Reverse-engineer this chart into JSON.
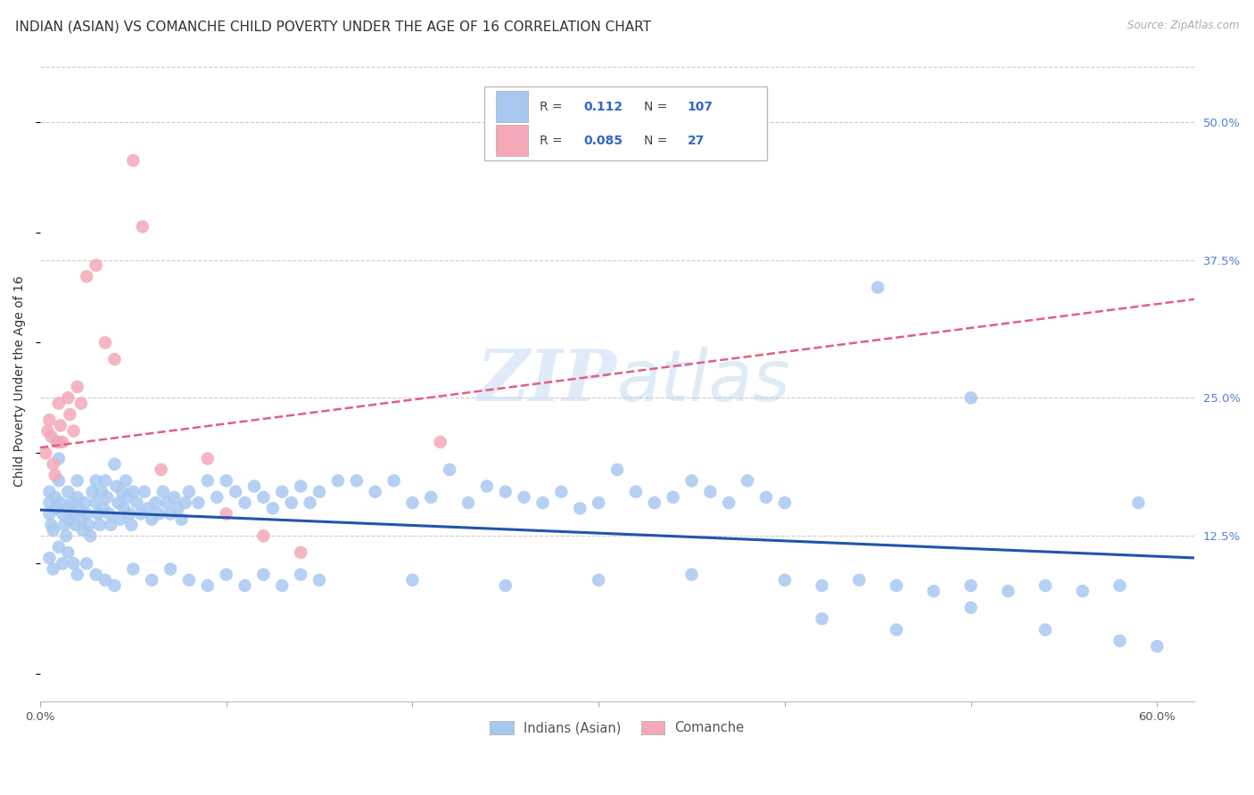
{
  "title": "INDIAN (ASIAN) VS COMANCHE CHILD POVERTY UNDER THE AGE OF 16 CORRELATION CHART",
  "source": "Source: ZipAtlas.com",
  "ylabel": "Child Poverty Under the Age of 16",
  "xlim": [
    0.0,
    0.62
  ],
  "ylim": [
    -0.025,
    0.555
  ],
  "xticks": [
    0.0,
    0.1,
    0.2,
    0.3,
    0.4,
    0.5,
    0.6
  ],
  "xticklabels": [
    "0.0%",
    "",
    "",
    "",
    "",
    "",
    "60.0%"
  ],
  "yticks_right": [
    0.125,
    0.25,
    0.375,
    0.5
  ],
  "ytick_labels_right": [
    "12.5%",
    "25.0%",
    "37.5%",
    "50.0%"
  ],
  "color_asian": "#a8c8f0",
  "color_comanche": "#f4a8b8",
  "line_color_asian": "#2255aa",
  "line_color_comanche": "#e06080",
  "background_color": "#ffffff",
  "watermark_zip": "ZIP",
  "watermark_atlas": "atlas",
  "title_fontsize": 11,
  "axis_label_fontsize": 10,
  "tick_fontsize": 9.5,
  "asian_x": [
    0.005,
    0.005,
    0.005,
    0.006,
    0.007,
    0.008,
    0.009,
    0.01,
    0.01,
    0.01,
    0.011,
    0.012,
    0.013,
    0.014,
    0.015,
    0.015,
    0.016,
    0.017,
    0.018,
    0.019,
    0.02,
    0.02,
    0.021,
    0.022,
    0.023,
    0.024,
    0.025,
    0.026,
    0.027,
    0.028,
    0.03,
    0.03,
    0.031,
    0.032,
    0.033,
    0.034,
    0.035,
    0.036,
    0.037,
    0.038,
    0.04,
    0.041,
    0.042,
    0.043,
    0.044,
    0.045,
    0.046,
    0.047,
    0.048,
    0.049,
    0.05,
    0.052,
    0.054,
    0.056,
    0.058,
    0.06,
    0.062,
    0.064,
    0.066,
    0.068,
    0.07,
    0.072,
    0.074,
    0.076,
    0.078,
    0.08,
    0.085,
    0.09,
    0.095,
    0.1,
    0.105,
    0.11,
    0.115,
    0.12,
    0.125,
    0.13,
    0.135,
    0.14,
    0.145,
    0.15,
    0.16,
    0.17,
    0.18,
    0.19,
    0.2,
    0.21,
    0.22,
    0.23,
    0.24,
    0.25,
    0.26,
    0.27,
    0.28,
    0.29,
    0.3,
    0.31,
    0.32,
    0.33,
    0.34,
    0.35,
    0.36,
    0.37,
    0.38,
    0.39,
    0.4,
    0.45,
    0.5,
    0.59
  ],
  "asian_y": [
    0.165,
    0.155,
    0.145,
    0.135,
    0.13,
    0.16,
    0.15,
    0.21,
    0.195,
    0.175,
    0.155,
    0.145,
    0.135,
    0.125,
    0.165,
    0.15,
    0.14,
    0.155,
    0.145,
    0.135,
    0.175,
    0.16,
    0.15,
    0.14,
    0.13,
    0.155,
    0.145,
    0.135,
    0.125,
    0.165,
    0.175,
    0.155,
    0.145,
    0.135,
    0.165,
    0.15,
    0.175,
    0.16,
    0.145,
    0.135,
    0.19,
    0.17,
    0.155,
    0.14,
    0.165,
    0.15,
    0.175,
    0.16,
    0.145,
    0.135,
    0.165,
    0.155,
    0.145,
    0.165,
    0.15,
    0.14,
    0.155,
    0.145,
    0.165,
    0.155,
    0.145,
    0.16,
    0.15,
    0.14,
    0.155,
    0.165,
    0.155,
    0.175,
    0.16,
    0.175,
    0.165,
    0.155,
    0.17,
    0.16,
    0.15,
    0.165,
    0.155,
    0.17,
    0.155,
    0.165,
    0.175,
    0.175,
    0.165,
    0.175,
    0.155,
    0.16,
    0.185,
    0.155,
    0.17,
    0.165,
    0.16,
    0.155,
    0.165,
    0.15,
    0.155,
    0.185,
    0.165,
    0.155,
    0.16,
    0.175,
    0.165,
    0.155,
    0.175,
    0.16,
    0.155,
    0.35,
    0.25,
    0.155
  ],
  "asian_x2": [
    0.005,
    0.007,
    0.01,
    0.012,
    0.015,
    0.018,
    0.02,
    0.025,
    0.03,
    0.035,
    0.04,
    0.05,
    0.06,
    0.07,
    0.08,
    0.09,
    0.1,
    0.11,
    0.12,
    0.13,
    0.14,
    0.15,
    0.2,
    0.25,
    0.3,
    0.35,
    0.4,
    0.42,
    0.44,
    0.46,
    0.48,
    0.5,
    0.52,
    0.54,
    0.56,
    0.58,
    0.6,
    0.42,
    0.46,
    0.5,
    0.54,
    0.58
  ],
  "asian_y2": [
    0.105,
    0.095,
    0.115,
    0.1,
    0.11,
    0.1,
    0.09,
    0.1,
    0.09,
    0.085,
    0.08,
    0.095,
    0.085,
    0.095,
    0.085,
    0.08,
    0.09,
    0.08,
    0.09,
    0.08,
    0.09,
    0.085,
    0.085,
    0.08,
    0.085,
    0.09,
    0.085,
    0.08,
    0.085,
    0.08,
    0.075,
    0.08,
    0.075,
    0.08,
    0.075,
    0.08,
    0.025,
    0.05,
    0.04,
    0.06,
    0.04,
    0.03
  ],
  "comanche_x": [
    0.003,
    0.004,
    0.005,
    0.006,
    0.007,
    0.008,
    0.009,
    0.01,
    0.011,
    0.012,
    0.015,
    0.016,
    0.018,
    0.02,
    0.022,
    0.025,
    0.03,
    0.035,
    0.04,
    0.05,
    0.055,
    0.065,
    0.09,
    0.1,
    0.12,
    0.14,
    0.215
  ],
  "comanche_y": [
    0.2,
    0.22,
    0.23,
    0.215,
    0.19,
    0.18,
    0.21,
    0.245,
    0.225,
    0.21,
    0.25,
    0.235,
    0.22,
    0.26,
    0.245,
    0.36,
    0.37,
    0.3,
    0.285,
    0.465,
    0.405,
    0.185,
    0.195,
    0.145,
    0.125,
    0.11,
    0.21
  ]
}
